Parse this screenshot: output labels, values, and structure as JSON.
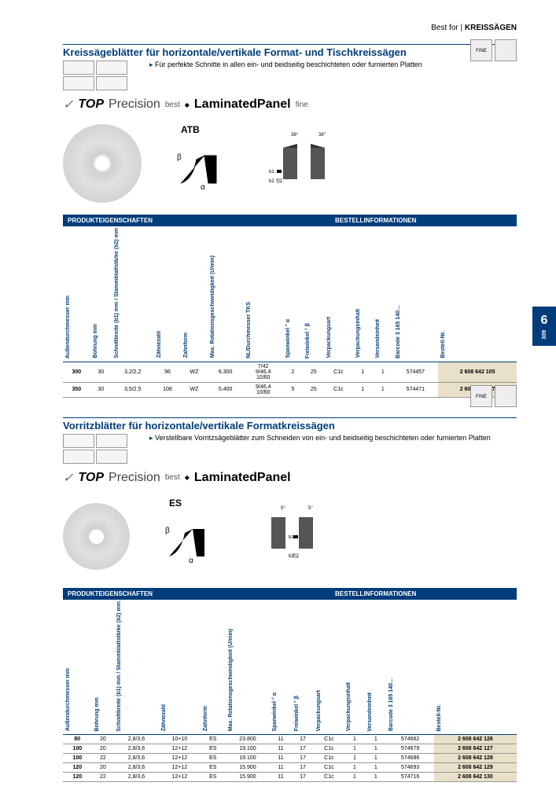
{
  "header": {
    "category": "Best for |",
    "product": "KREISSÄGEN"
  },
  "sideTab": {
    "chapter": "6",
    "page": "309"
  },
  "section1": {
    "title": "Kreissägeblätter für horizontale/vertikale Format- und Tischkreissägen",
    "intro": "Für perfekte Schnitte in allen ein- und beidseitig beschichteten oder furnierten Platten",
    "badge": "FINE",
    "brand": {
      "top": "TOP",
      "precision": "Precision",
      "best": "best",
      "panel": "LaminatedPanel",
      "fine": "fine"
    },
    "toothLabel": "ATB",
    "angles": {
      "a1": "38°",
      "a2": "38°",
      "b1": "b1",
      "b2": "b2"
    },
    "greek": {
      "beta": "β",
      "alpha": "α"
    },
    "tableHeaders": {
      "left": "PRODUKTEIGENSCHAFTEN",
      "right": "BESTELLINFORMATIONEN"
    },
    "columns": [
      "Außendurchmesser mm",
      "Bohrung mm",
      "Schnittbreite (b1) mm / Stammblattstärke (b2) mm",
      "Zähnezahl",
      "Zahnform",
      "Max. Rotationsgeschwindigkeit (U/min)",
      "NL/Durchmesser TKS",
      "Spanwinkel ° α",
      "Freiwinkel ° β",
      "Verpackungsart",
      "Verpackungsinhalt",
      "Versandeinheit",
      "Barcode 3 165 140…",
      "Bestell-Nr."
    ],
    "rows": [
      {
        "d": "300",
        "bore": "30",
        "cut": "3,2/2,2",
        "teeth": "96",
        "form": "WZ",
        "rpm": "6.300",
        "nl": "7/42\n9/46,4\n10/60",
        "span": "2",
        "frei": "25",
        "pack": "C1c",
        "pi": "1",
        "ve": "1",
        "bc": "574457",
        "order": "2 608 642 105"
      },
      {
        "d": "350",
        "bore": "30",
        "cut": "3,5/2,5",
        "teeth": "108",
        "form": "WZ",
        "rpm": "5.400",
        "nl": "9/46,4\n10/60",
        "span": "5",
        "frei": "25",
        "pack": "C1c",
        "pi": "1",
        "ve": "1",
        "bc": "574471",
        "order": "2 608 642 107"
      }
    ]
  },
  "section2": {
    "title": "Vorritzblätter für horizontale/vertikale Formatkreissägen",
    "intro": "Verstellbare Vorritzsägeblätter zum Schneiden von ein- und beidseitig beschichteten oder furnierten Platten",
    "badge": "FINE",
    "brand": {
      "top": "TOP",
      "precision": "Precision",
      "best": "best",
      "panel": "LaminatedPanel"
    },
    "toothLabel": "ES",
    "angles": {
      "a1": "5°",
      "a2": "5°",
      "b1": "b1",
      "b2": "b2"
    },
    "greek": {
      "beta": "β",
      "alpha": "α"
    },
    "tableHeaders": {
      "left": "PRODUKTEIGENSCHAFTEN",
      "right": "BESTELLINFORMATIONEN"
    },
    "columns": [
      "Außendurchmesser mm",
      "Bohrung mm",
      "Schnittbreite (b1) mm / Stammblattstärke (b2) mm",
      "Zähnezahl",
      "Zahnform",
      "Max. Rotationsgeschwindigkeit (U/min)",
      "Spanwinkel ° α",
      "Freiwinkel ° β",
      "Verpackungsart",
      "Verpackungsinhalt",
      "Versandeinheit",
      "Barcode 3 165 140…",
      "Bestell-Nr."
    ],
    "rows": [
      {
        "d": "80",
        "bore": "20",
        "cut": "2,8/3,6",
        "teeth": "10+10",
        "form": "ES",
        "rpm": "23.800",
        "span": "11",
        "frei": "17",
        "pack": "C1c",
        "pi": "1",
        "ve": "1",
        "bc": "574662",
        "order": "2 608 642 126"
      },
      {
        "d": "100",
        "bore": "20",
        "cut": "2,8/3,6",
        "teeth": "12+12",
        "form": "ES",
        "rpm": "19.100",
        "span": "11",
        "frei": "17",
        "pack": "C1c",
        "pi": "1",
        "ve": "1",
        "bc": "574679",
        "order": "2 608 642 127"
      },
      {
        "d": "100",
        "bore": "22",
        "cut": "2,8/3,6",
        "teeth": "12+12",
        "form": "ES",
        "rpm": "19.100",
        "span": "11",
        "frei": "17",
        "pack": "C1c",
        "pi": "1",
        "ve": "1",
        "bc": "574686",
        "order": "2 608 642 128"
      },
      {
        "d": "120",
        "bore": "20",
        "cut": "2,8/3,6",
        "teeth": "12+12",
        "form": "ES",
        "rpm": "15.900",
        "span": "11",
        "frei": "17",
        "pack": "C1c",
        "pi": "1",
        "ve": "1",
        "bc": "574693",
        "order": "2 608 642 129"
      },
      {
        "d": "120",
        "bore": "22",
        "cut": "2,8/3,6",
        "teeth": "12+12",
        "form": "ES",
        "rpm": "15.900",
        "span": "11",
        "frei": "17",
        "pack": "C1c",
        "pi": "1",
        "ve": "1",
        "bc": "574716",
        "order": "2 608 642 130"
      }
    ]
  }
}
